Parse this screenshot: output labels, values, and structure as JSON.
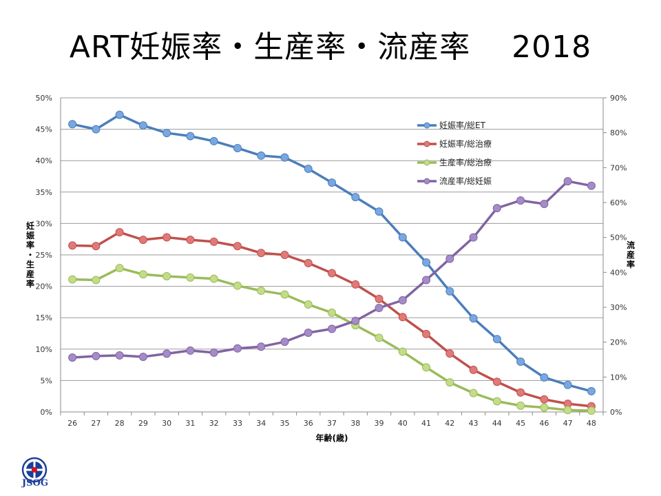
{
  "title": "ART妊娠率・生産率・流産率　 2018",
  "logo": {
    "text": "JSOG",
    "color": "#1a3e99"
  },
  "chart_data": {
    "type": "line",
    "categories": [
      "26",
      "27",
      "28",
      "29",
      "30",
      "31",
      "32",
      "33",
      "34",
      "35",
      "36",
      "37",
      "38",
      "39",
      "40",
      "41",
      "42",
      "43",
      "44",
      "45",
      "46",
      "47",
      "48"
    ],
    "xlabel": "年齢(歳)",
    "ylabel_left": "妊娠率・生産率",
    "ylabel_right": "流産率",
    "y_left": {
      "range": [
        0,
        50
      ],
      "ticks": [
        "0%",
        "5%",
        "10%",
        "15%",
        "20%",
        "25%",
        "30%",
        "35%",
        "40%",
        "45%",
        "50%"
      ]
    },
    "y_right": {
      "range": [
        0,
        90
      ],
      "ticks": [
        "0%",
        "10%",
        "20%",
        "30%",
        "40%",
        "50%",
        "60%",
        "70%",
        "80%",
        "90%"
      ]
    },
    "grid": true,
    "legend_position": "top-right",
    "series": [
      {
        "name": "妊娠率/総ET",
        "axis": "left",
        "color": "#4a7ebb",
        "marker": "#7aa7e0",
        "values": [
          45.8,
          45.0,
          47.3,
          45.6,
          44.4,
          43.9,
          43.1,
          42.0,
          40.8,
          40.5,
          38.7,
          36.5,
          34.2,
          31.9,
          27.8,
          23.8,
          19.2,
          14.9,
          11.6,
          8.0,
          5.5,
          4.3,
          3.3
        ]
      },
      {
        "name": "妊娠率/総治療",
        "axis": "left",
        "color": "#c0504d",
        "marker": "#e07a78",
        "values": [
          26.5,
          26.4,
          28.6,
          27.4,
          27.8,
          27.4,
          27.1,
          26.4,
          25.3,
          25.0,
          23.7,
          22.1,
          20.3,
          18.0,
          15.1,
          12.4,
          9.3,
          6.7,
          4.8,
          3.1,
          2.0,
          1.3,
          0.9
        ]
      },
      {
        "name": "生産率/総治療",
        "axis": "left",
        "color": "#9bbb59",
        "marker": "#c3dc8a",
        "values": [
          21.1,
          21.0,
          22.9,
          21.9,
          21.6,
          21.4,
          21.2,
          20.1,
          19.3,
          18.7,
          17.1,
          15.8,
          13.8,
          11.8,
          9.6,
          7.1,
          4.7,
          3.0,
          1.7,
          1.0,
          0.7,
          0.3,
          0.2
        ]
      },
      {
        "name": "流産率/総妊娠",
        "axis": "right",
        "color": "#8064a2",
        "marker": "#a58bc7",
        "values": [
          15.6,
          16.0,
          16.2,
          15.8,
          16.7,
          17.6,
          17.0,
          18.2,
          18.7,
          20.1,
          22.7,
          23.8,
          26.1,
          29.8,
          32.0,
          37.8,
          43.9,
          50.0,
          58.4,
          60.6,
          59.6,
          66.1,
          64.8
        ]
      }
    ]
  }
}
